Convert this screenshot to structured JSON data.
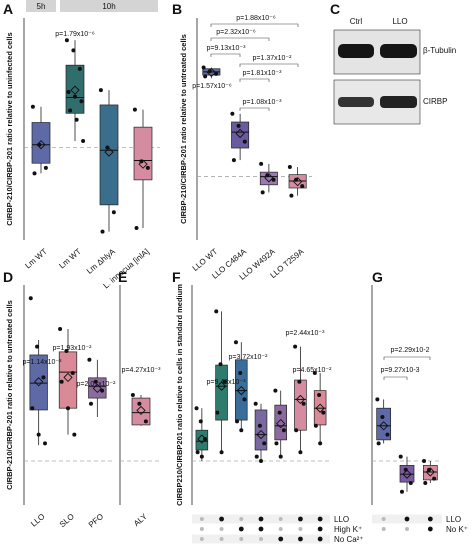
{
  "chart_data": [
    {
      "type": "box",
      "panel": "A",
      "ylabel": "CIRBP-210/CIRBP-201 ratio relative to uninfected cells",
      "groups": [
        "5h",
        "10h"
      ],
      "categories": [
        "Lm WT",
        "Lm WT",
        "Lm ΔhlyA",
        "L. innocua [inlA]"
      ],
      "ylim": [
        0,
        2.4
      ],
      "reference": 1,
      "boxes": [
        {
          "color": "#5e6aa6",
          "low": 0.72,
          "q1": 0.83,
          "median": 1.03,
          "q3": 1.27,
          "high": 1.44,
          "mean": 1.03,
          "points": [
            1.44,
            1.03,
            0.78,
            0.72
          ]
        },
        {
          "color": "#2f6e6c",
          "low": 1.07,
          "q1": 1.37,
          "median": 1.54,
          "q3": 1.89,
          "high": 2.16,
          "mean": 1.62,
          "points": [
            2.16,
            2.05,
            1.85,
            1.6,
            1.55,
            1.5,
            1.4,
            1.3,
            1.07
          ]
        },
        {
          "color": "#3a6e8c",
          "low": 0.09,
          "q1": 0.38,
          "median": 0.97,
          "q3": 1.46,
          "high": 1.62,
          "mean": 0.95,
          "points": [
            1.62,
            1.0,
            0.3,
            0.09
          ]
        },
        {
          "color": "#d58ca0",
          "low": 0.13,
          "q1": 0.65,
          "median": 0.86,
          "q3": 1.22,
          "high": 1.41,
          "mean": 0.82,
          "points": [
            1.41,
            0.85,
            0.78,
            0.13
          ]
        }
      ],
      "annotations": [
        "p=1.79x10⁻⁶"
      ]
    },
    {
      "type": "box",
      "panel": "B",
      "ylabel": "CIRBP-210/CIRBP-201 ratio relative to untreated cells",
      "categories": [
        "LLO WT",
        "LLO C484A",
        "LLO W492A",
        "LLO T259A"
      ],
      "ylim": [
        0,
        3.5
      ],
      "reference": 1,
      "boxes": [
        {
          "color": "#5e6aa6",
          "low": 2.55,
          "q1": 2.6,
          "median": 2.65,
          "q3": 2.7,
          "high": 2.72,
          "mean": 2.64,
          "points": [
            2.72,
            2.66,
            2.62,
            2.58
          ]
        },
        {
          "color": "#6a5aa0",
          "low": 1.26,
          "q1": 1.45,
          "median": 1.7,
          "q3": 1.86,
          "high": 1.99,
          "mean": 1.68,
          "points": [
            1.99,
            1.8,
            1.55,
            1.26
          ]
        },
        {
          "color": "#9a7ab0",
          "low": 0.75,
          "q1": 0.87,
          "median": 1.0,
          "q3": 1.07,
          "high": 1.2,
          "mean": 0.98,
          "points": [
            1.2,
            1.02,
            0.95,
            0.75
          ]
        },
        {
          "color": "#d58ca0",
          "low": 0.7,
          "q1": 0.82,
          "median": 0.93,
          "q3": 1.03,
          "high": 1.15,
          "mean": 0.92,
          "points": [
            1.15,
            0.95,
            0.85,
            0.7
          ]
        }
      ],
      "annotations": [
        "p=1.88x10⁻⁶",
        "p=2.32x10⁻⁶",
        "p=9.13x10⁻³",
        "p=1.37x10⁻²",
        "p=1.81x10⁻³",
        "p=1.57x10⁻⁶",
        "p=1.08x10⁻³"
      ]
    },
    {
      "type": "box",
      "panel": "D",
      "ylabel": "CIRBP-210/CIRBP-201 ratio relative to untreated cells",
      "categories": [
        "LLO",
        "SLO",
        "PFO"
      ],
      "ylim": [
        0,
        5
      ],
      "reference": 1,
      "boxes": [
        {
          "color": "#5e6aa6",
          "low": 1.36,
          "q1": 2.16,
          "median": 2.77,
          "q3": 3.41,
          "high": 3.75,
          "mean": 2.8,
          "points": [
            4.7,
            3.6,
            2.9,
            2.2,
            1.6,
            1.4
          ]
        },
        {
          "color": "#d98a96",
          "low": 1.6,
          "q1": 2.2,
          "median": 3.02,
          "q3": 3.48,
          "high": 4.0,
          "mean": 2.9,
          "points": [
            4.0,
            3.5,
            3.0,
            2.8,
            2.2,
            1.6
          ]
        },
        {
          "color": "#8c6aa0",
          "low": 2.0,
          "q1": 2.43,
          "median": 2.7,
          "q3": 2.89,
          "high": 3.3,
          "mean": 2.65,
          "points": [
            3.3,
            2.8,
            2.6,
            2.3
          ]
        }
      ],
      "annotations": [
        "p=1.14x10⁻³",
        "p=1.93x10⁻²",
        "p=2.07x10⁻²"
      ]
    },
    {
      "type": "box",
      "panel": "E",
      "categories": [
        "ALY"
      ],
      "ylim": [
        0,
        5
      ],
      "reference": 1,
      "boxes": [
        {
          "color": "#d58ca0",
          "low": 1.8,
          "q1": 1.82,
          "median": 2.1,
          "q3": 2.43,
          "high": 2.5,
          "mean": 2.15,
          "points": [
            2.5,
            2.3,
            1.9
          ]
        }
      ],
      "annotations": [
        "p=4.27x10⁻³"
      ]
    },
    {
      "type": "box",
      "panel": "F",
      "ylabel": "CIRBP210/CIRBP201 ratio relative to cells in standard medium",
      "ylim": [
        0,
        5
      ],
      "reference": 1,
      "boxes": [
        {
          "color": "#2f7b6e",
          "low": 1.0,
          "q1": 1.25,
          "median": 1.45,
          "q3": 1.7,
          "high": 2.2,
          "mean": 1.5,
          "points": [
            2.2,
            1.9,
            1.5,
            1.2,
            1.1
          ]
        },
        {
          "color": "#2f7b6e",
          "low": 1.2,
          "q1": 1.93,
          "median": 2.7,
          "q3": 3.18,
          "high": 4.4,
          "mean": 2.7,
          "points": [
            4.4,
            3.2,
            2.8,
            2.1,
            1.2
          ]
        },
        {
          "color": "#3a6e9a",
          "low": 1.7,
          "q1": 1.93,
          "median": 2.6,
          "q3": 3.3,
          "high": 3.7,
          "mean": 2.6,
          "points": [
            3.7,
            3.0,
            2.4,
            1.9,
            1.7
          ]
        },
        {
          "color": "#7a68a0",
          "low": 1.0,
          "q1": 1.25,
          "median": 1.6,
          "q3": 2.16,
          "high": 2.3,
          "mean": 1.6,
          "points": [
            2.3,
            1.8,
            1.4,
            1.1,
            1.0
          ]
        },
        {
          "color": "#8c6aa0",
          "low": 1.1,
          "q1": 1.48,
          "median": 1.8,
          "q3": 2.27,
          "high": 2.6,
          "mean": 1.85,
          "points": [
            2.6,
            2.1,
            1.7,
            1.4,
            1.1
          ]
        },
        {
          "color": "#d58ca0",
          "low": 1.2,
          "q1": 1.7,
          "median": 2.4,
          "q3": 2.84,
          "high": 3.6,
          "mean": 2.4,
          "points": [
            3.6,
            2.8,
            2.3,
            1.7,
            1.2
          ]
        },
        {
          "color": "#d98a96",
          "low": 1.4,
          "q1": 1.82,
          "median": 2.2,
          "q3": 2.6,
          "high": 3.0,
          "mean": 2.2,
          "points": [
            3.0,
            2.5,
            2.1,
            1.8,
            1.4
          ]
        }
      ],
      "annotations": [
        "p=9.48x10⁻³",
        "p=3.72x10⁻²",
        "p=2.44x10⁻³",
        "p=4.65x10⁻²"
      ],
      "conditions": [
        {
          "label": "LLO",
          "present": [
            0,
            1,
            0,
            1,
            0,
            1,
            1
          ]
        },
        {
          "label": "High K⁺",
          "present": [
            0,
            0,
            1,
            1,
            0,
            0,
            1
          ]
        },
        {
          "label": "No Ca²⁺",
          "present": [
            0,
            0,
            0,
            0,
            1,
            1,
            1
          ]
        }
      ]
    },
    {
      "type": "box",
      "panel": "G",
      "ylim": [
        0,
        5
      ],
      "reference": 1,
      "boxes": [
        {
          "color": "#5e6aa6",
          "low": 1.4,
          "q1": 1.48,
          "median": 1.8,
          "q3": 2.2,
          "high": 2.4,
          "mean": 1.8,
          "points": [
            2.4,
            2.0,
            1.6,
            1.4
          ]
        },
        {
          "color": "#7a5aa0",
          "low": 0.3,
          "q1": 0.52,
          "median": 0.7,
          "q3": 0.9,
          "high": 1.1,
          "mean": 0.7,
          "points": [
            1.1,
            0.8,
            0.5,
            0.3
          ]
        },
        {
          "color": "#d58ca0",
          "low": 0.5,
          "q1": 0.57,
          "median": 0.75,
          "q3": 0.9,
          "high": 1.0,
          "mean": 0.75,
          "points": [
            1.0,
            0.8,
            0.6,
            0.5
          ]
        }
      ],
      "annotations": [
        "p=9.27x10-3",
        "p=2.29x10-2"
      ],
      "conditions": [
        {
          "label": "LLO",
          "present": [
            0,
            1,
            1
          ]
        },
        {
          "label": "No K⁺",
          "present": [
            0,
            0,
            1
          ]
        }
      ]
    }
  ],
  "blot": {
    "panel": "C",
    "lanes": [
      "Ctrl",
      "LLO"
    ],
    "bands": [
      "β-Tubulin",
      "CIRBP"
    ]
  }
}
